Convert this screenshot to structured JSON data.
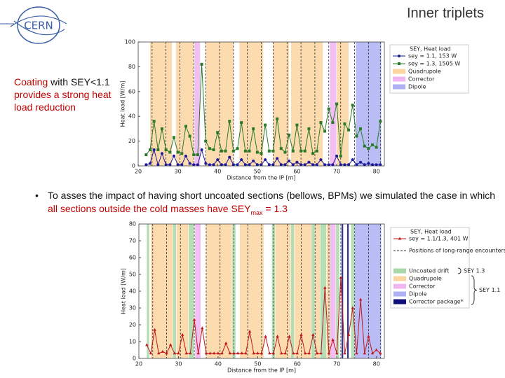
{
  "slide_title": "Inner triplets",
  "logo": "CERN",
  "side_text": [
    "Coating",
    "with SEY<1.1",
    "provides a strong heat load reduction"
  ],
  "bullet": [
    "To asses the impact of having short uncoated sections (bellows, BPMs) we simulated the case in which",
    "all sections outside the cold masses have SEY",
    "max",
    "= 1.3"
  ],
  "chart_data": [
    {
      "type": "line",
      "x_label": "Distance from the IP [m]",
      "y_label": "Heat load [W/m]",
      "legend_title": "SEY, Heat load",
      "xlim": [
        20,
        82
      ],
      "xticks": [
        20,
        30,
        40,
        50,
        60,
        70,
        80
      ],
      "ylim": [
        0,
        100
      ],
      "yticks": [
        0,
        20,
        40,
        60,
        80,
        100
      ],
      "x": [
        22,
        23,
        24,
        25,
        26,
        27,
        28,
        29,
        30,
        31,
        32,
        33,
        34,
        35,
        36,
        37,
        38,
        39,
        40,
        41,
        42,
        43,
        44,
        45,
        46,
        47,
        48,
        49,
        50,
        51,
        52,
        53,
        54,
        55,
        56,
        57,
        58,
        59,
        60,
        61,
        62,
        63,
        64,
        65,
        66,
        67,
        68,
        69,
        70,
        71,
        72,
        73,
        74,
        75,
        76,
        77,
        78,
        79,
        80,
        81
      ],
      "series": [
        {
          "name": "sey = 1.1, 153 W",
          "color": "#1a1a9a",
          "marker": "circle",
          "values": [
            1,
            2,
            13,
            1,
            10,
            1,
            1,
            8,
            1,
            1,
            8,
            2,
            1,
            1,
            13,
            2,
            1,
            1,
            5,
            1,
            1,
            7,
            1,
            1,
            5,
            1,
            1,
            4,
            1,
            1,
            5,
            1,
            1,
            6,
            1,
            1,
            4,
            1,
            3,
            1,
            1,
            3,
            1,
            1,
            5,
            1,
            1,
            1,
            8,
            1,
            1,
            1,
            5,
            1,
            3,
            1,
            2,
            1,
            1,
            1
          ]
        },
        {
          "name": "sey = 1.3, 1505 W",
          "color": "#2a7a2a",
          "marker": "square",
          "values": [
            9,
            13,
            36,
            13,
            30,
            13,
            11,
            23,
            11,
            10,
            32,
            24,
            9,
            9,
            82,
            20,
            14,
            13,
            27,
            12,
            12,
            36,
            12,
            14,
            35,
            12,
            12,
            30,
            11,
            10,
            33,
            12,
            12,
            38,
            14,
            11,
            25,
            12,
            33,
            12,
            12,
            30,
            10,
            12,
            35,
            28,
            46,
            35,
            50,
            8,
            34,
            29,
            49,
            24,
            30,
            16,
            14,
            17,
            15,
            36
          ]
        }
      ],
      "vlines": {
        "x": [
          23.5,
          27,
          30.5,
          34,
          37,
          40.5,
          44,
          47.5,
          51,
          54,
          57.5,
          61,
          64.5,
          68,
          71,
          74.5,
          78,
          81
        ]
      },
      "regions": [
        {
          "name": "Quadrupole",
          "color": "#fbd5a0",
          "spans": [
            [
              23,
              28.5
            ],
            [
              29.5,
              34
            ],
            [
              37,
              44
            ],
            [
              45.5,
              51.5
            ],
            [
              54,
              58
            ],
            [
              58.5,
              66.5
            ],
            [
              70,
              73
            ]
          ]
        },
        {
          "name": "Corrector",
          "color": "#f0b4f0",
          "spans": [
            [
              34.2,
              35.6
            ],
            [
              68.3,
              69.9
            ]
          ]
        },
        {
          "name": "Dipole",
          "color": "#aeb0f5",
          "spans": [
            [
              74.8,
              81.2
            ]
          ]
        }
      ]
    },
    {
      "type": "line",
      "x_label": "Distance from the IP [m]",
      "y_label": "Heat load [W/m]",
      "legend_title": "SEY, Heat load",
      "xlim": [
        20,
        82
      ],
      "xticks": [
        20,
        30,
        40,
        50,
        60,
        70,
        80
      ],
      "ylim": [
        0,
        80
      ],
      "yticks": [
        0,
        10,
        20,
        30,
        40,
        50,
        60,
        70,
        80
      ],
      "x": [
        22,
        23,
        24,
        25,
        26,
        27,
        28,
        29,
        30,
        31,
        32,
        33,
        34,
        35,
        36,
        37,
        38,
        39,
        40,
        41,
        42,
        43,
        44,
        45,
        46,
        47,
        48,
        49,
        50,
        51,
        52,
        53,
        54,
        55,
        56,
        57,
        58,
        59,
        60,
        61,
        62,
        63,
        64,
        65,
        66,
        67,
        68,
        69,
        70,
        71,
        72,
        73,
        74,
        75,
        76,
        77,
        78,
        79,
        80,
        81
      ],
      "series": [
        {
          "name": "sey = 1.1/1.3, 401 W",
          "color": "#c0181a",
          "marker": "triangle",
          "values": [
            8,
            3,
            17,
            3,
            4,
            3,
            8,
            3,
            3,
            14,
            3,
            3,
            23,
            3,
            18,
            3,
            3,
            3,
            3,
            3,
            9,
            3,
            3,
            3,
            3,
            3,
            16,
            3,
            3,
            3,
            13,
            3,
            3,
            13,
            3,
            3,
            13,
            3,
            3,
            14,
            3,
            3,
            14,
            3,
            3,
            42,
            3,
            11,
            3,
            48,
            3,
            14,
            30,
            3,
            35,
            3,
            13,
            3,
            5,
            3
          ]
        }
      ],
      "vlines": {
        "name": "Positions of long-range encounters",
        "x": [
          23.5,
          27,
          30.5,
          34,
          37,
          40.5,
          44,
          47.5,
          51,
          54,
          57.5,
          61,
          64.5,
          68,
          71,
          74.5,
          78,
          81
        ]
      },
      "regions": [
        {
          "name": "Uncoated drift",
          "color": "#a8d8a8",
          "spans": [
            [
              22,
              22.6
            ],
            [
              28.6,
              29.4
            ],
            [
              32.6,
              33.9
            ],
            [
              43.6,
              44.4
            ],
            [
              53.6,
              54.4
            ],
            [
              58.4,
              59.2
            ],
            [
              63.6,
              64.4
            ],
            [
              65.8,
              67.3
            ],
            [
              69.8,
              70.6
            ],
            [
              73.6,
              74.4
            ]
          ]
        },
        {
          "name": "Quadrupole",
          "color": "#fbd5a0",
          "spans": [
            [
              23,
              28.5
            ],
            [
              29.5,
              32.5
            ],
            [
              37,
              43.5
            ],
            [
              45.5,
              51.5
            ],
            [
              54.5,
              58.3
            ],
            [
              59.3,
              63.5
            ],
            [
              64.5,
              65.7
            ],
            [
              67.4,
              68.3
            ]
          ]
        },
        {
          "name": "Corrector",
          "color": "#f0b4f0",
          "spans": [
            [
              34.2,
              35.6
            ],
            [
              68.3,
              69.7
            ]
          ]
        },
        {
          "name": "Dipole",
          "color": "#aeb0f5",
          "spans": [
            [
              74.5,
              81.2
            ]
          ]
        },
        {
          "name": "Corrector package*",
          "color": "#10107a",
          "spans": [
            [
              71.2,
              71.6
            ],
            [
              72.6,
              73
            ]
          ]
        }
      ],
      "annotations": [
        "SEY 1.3",
        "SEY 1.1"
      ]
    }
  ]
}
